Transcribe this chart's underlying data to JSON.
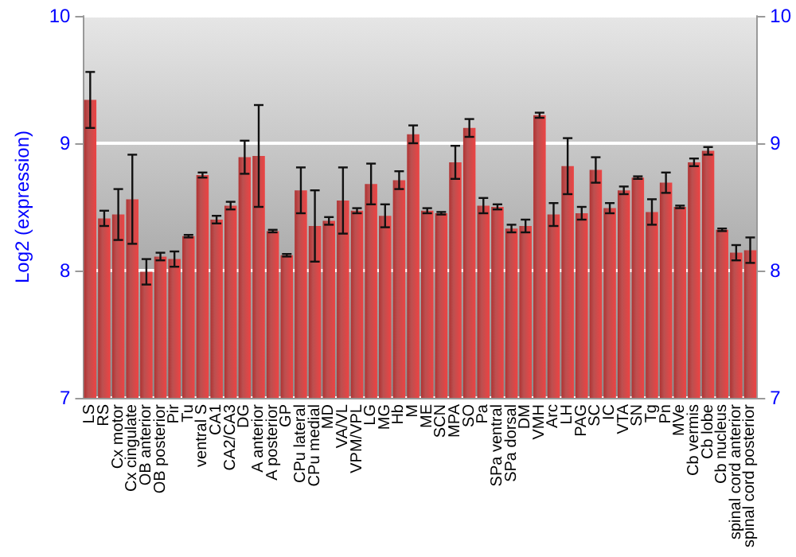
{
  "chart_data": {
    "type": "bar",
    "ylabel": "Log2 (expression)",
    "categories": [
      "LS",
      "RS",
      "Cx motor",
      "Cx cingulate",
      "OB anterior",
      "OB posterior",
      "Pir",
      "Tu",
      "ventral S",
      "CA1",
      "CA2/CA3",
      "DG",
      "A anterior",
      "A posterior",
      "GP",
      "CPu lateral",
      "CPu medial",
      "MD",
      "VA/VL",
      "VPM/VPL",
      "LG",
      "MG",
      "Hb",
      "M",
      "ME",
      "SCN",
      "MPA",
      "SO",
      "Pa",
      "SPa ventral",
      "SPa dorsal",
      "DM",
      "VMH",
      "Arc",
      "LH",
      "PAG",
      "SC",
      "IC",
      "VTA",
      "SN",
      "Tg",
      "Pn",
      "MVe",
      "Cb vermis",
      "Cb lobe",
      "Cb nucleus",
      "spinal cord anterior",
      "spinal cord posterior"
    ],
    "values": [
      9.34,
      8.41,
      8.44,
      8.56,
      7.99,
      8.11,
      8.09,
      8.27,
      8.75,
      8.4,
      8.51,
      8.89,
      8.9,
      8.31,
      8.12,
      8.63,
      8.35,
      8.39,
      8.55,
      8.47,
      8.68,
      8.43,
      8.71,
      9.07,
      8.47,
      8.45,
      8.85,
      9.12,
      8.51,
      8.5,
      8.33,
      8.35,
      9.22,
      8.44,
      8.82,
      8.45,
      8.79,
      8.49,
      8.63,
      8.73,
      8.46,
      8.69,
      8.5,
      8.85,
      8.94,
      8.32,
      8.14,
      8.16
    ],
    "errors": [
      0.22,
      0.06,
      0.2,
      0.35,
      0.1,
      0.03,
      0.06,
      0.01,
      0.02,
      0.03,
      0.03,
      0.13,
      0.4,
      0.01,
      0.01,
      0.18,
      0.28,
      0.03,
      0.26,
      0.02,
      0.16,
      0.09,
      0.07,
      0.07,
      0.02,
      0.01,
      0.13,
      0.07,
      0.06,
      0.02,
      0.03,
      0.05,
      0.02,
      0.09,
      0.22,
      0.05,
      0.1,
      0.04,
      0.03,
      0.01,
      0.1,
      0.08,
      0.01,
      0.03,
      0.03,
      0.01,
      0.06,
      0.1
    ],
    "color": "#b03232",
    "ylim": [
      7,
      10
    ],
    "yticks": [
      7,
      8,
      9,
      10
    ],
    "y2lim": [
      7,
      10
    ],
    "y2ticks": [
      7,
      8,
      9,
      10
    ],
    "grid": "y"
  }
}
